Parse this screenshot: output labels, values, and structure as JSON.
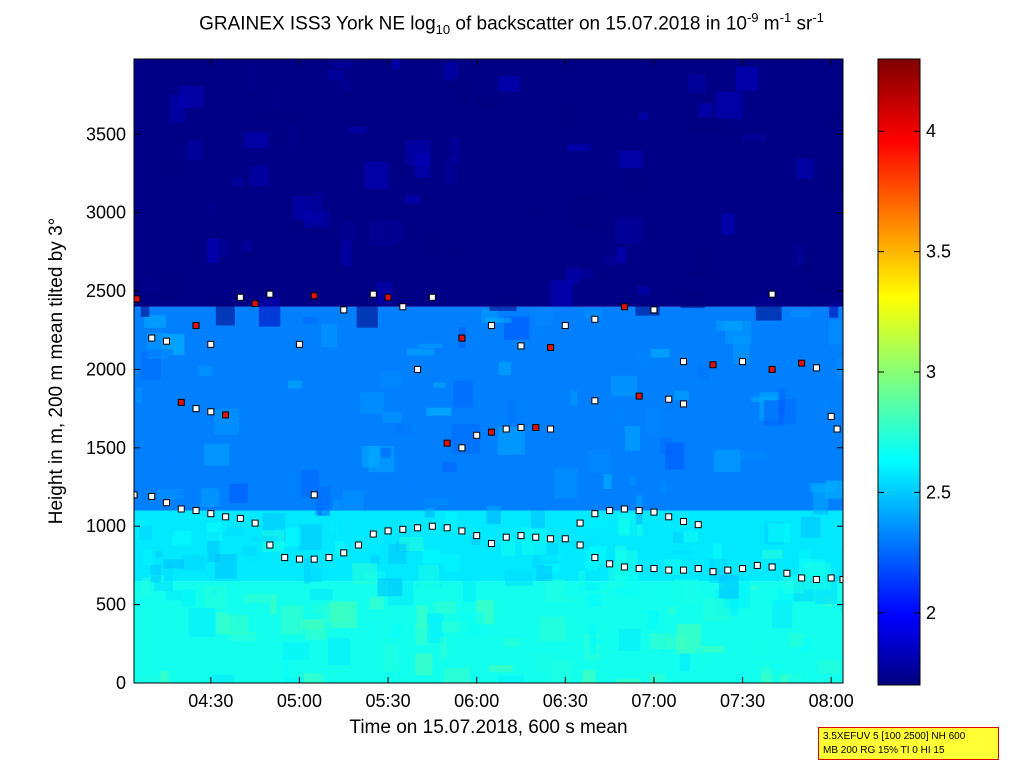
{
  "chart_data": {
    "type": "heatmap",
    "title_parts": {
      "pre": "GRAINEX ISS3 York NE log",
      "sub": "10",
      "mid": " of backscatter on 15.07.2018 in 10",
      "sup1": "-9",
      "mid2": " m",
      "sup2": "-1",
      "mid3": " sr",
      "sup3": "-1"
    },
    "xlabel": "Time on 15.07.2018, 600 s mean",
    "ylabel": "Height in m, 200 m mean tilted by 3°",
    "x_range": [
      "04:04",
      "08:04"
    ],
    "y_range": [
      0,
      3980
    ],
    "x_ticks": [
      "04:30",
      "05:00",
      "05:30",
      "06:00",
      "06:30",
      "07:00",
      "07:30",
      "08:00"
    ],
    "y_ticks": [
      0,
      500,
      1000,
      1500,
      2000,
      2500,
      3000,
      3500
    ],
    "colorbar": {
      "range": [
        1.7,
        4.3
      ],
      "ticks": [
        2,
        2.5,
        3,
        3.5,
        4
      ],
      "colormap": "jet"
    },
    "layers": [
      {
        "height_range": [
          0,
          650
        ],
        "value": 2.72
      },
      {
        "height_range": [
          650,
          1100
        ],
        "value": 2.62
      },
      {
        "height_range": [
          1100,
          2400
        ],
        "value": 2.35
      },
      {
        "height_range": [
          2400,
          3980
        ],
        "value": 1.72
      }
    ],
    "series": [
      {
        "marker": "square",
        "times": [
          "04:04",
          "04:10",
          "04:15",
          "04:20",
          "04:25",
          "04:30",
          "04:35",
          "04:40",
          "04:45",
          "04:50",
          "04:55",
          "05:00",
          "05:05",
          "05:10",
          "05:15",
          "05:20",
          "05:25",
          "05:30",
          "05:35",
          "05:40",
          "05:45",
          "05:50",
          "05:55",
          "06:00",
          "06:05",
          "06:10",
          "06:15",
          "06:20",
          "06:25",
          "06:30",
          "06:35",
          "06:40",
          "06:45",
          "06:50",
          "06:55",
          "07:00",
          "07:05",
          "07:10",
          "07:15",
          "07:20",
          "07:25",
          "07:30",
          "07:35",
          "07:40",
          "07:45",
          "07:50",
          "07:55",
          "08:00",
          "08:04"
        ],
        "heights": [
          1200,
          1190,
          1150,
          1110,
          1100,
          1080,
          1060,
          1050,
          1020,
          880,
          800,
          790,
          790,
          800,
          830,
          880,
          950,
          970,
          980,
          990,
          1000,
          990,
          970,
          940,
          890,
          930,
          940,
          930,
          920,
          920,
          880,
          800,
          760,
          740,
          730,
          730,
          720,
          720,
          730,
          710,
          720,
          730,
          750,
          740,
          700,
          670,
          660,
          670,
          660
        ]
      },
      {
        "marker": "square",
        "times": [
          "06:35",
          "06:40",
          "06:45",
          "06:50",
          "06:55",
          "07:00",
          "07:05",
          "07:10",
          "07:15"
        ],
        "heights": [
          1020,
          1080,
          1100,
          1110,
          1100,
          1090,
          1060,
          1030,
          1010
        ]
      },
      {
        "marker": "square",
        "times": [
          "04:05",
          "04:10",
          "04:15",
          "04:25",
          "04:30",
          "04:40",
          "04:45",
          "04:50",
          "05:00",
          "05:05",
          "05:15",
          "05:25",
          "05:30",
          "05:35",
          "05:45",
          "05:55",
          "06:05",
          "06:15",
          "06:25",
          "06:30",
          "06:40",
          "06:50",
          "07:00",
          "07:10",
          "07:20",
          "07:30",
          "07:40",
          "07:50",
          "08:00"
        ],
        "heights": [
          2450,
          2200,
          2180,
          2280,
          2160,
          2460,
          2420,
          2480,
          2160,
          2470,
          2380,
          2480,
          2460,
          2400,
          2460,
          2200,
          2280,
          2150,
          2140,
          2280,
          2320,
          2400,
          2380,
          2050,
          2030,
          2050,
          2480,
          2040,
          1700
        ]
      },
      {
        "marker": "square",
        "times": [
          "04:20",
          "04:25",
          "04:30",
          "04:35",
          "05:05",
          "05:40",
          "05:50",
          "05:55",
          "06:00",
          "06:05",
          "06:10",
          "06:15",
          "06:20",
          "06:25",
          "06:40",
          "06:55",
          "07:05",
          "07:10",
          "07:40",
          "07:55",
          "08:02"
        ],
        "heights": [
          1790,
          1750,
          1730,
          1710,
          1200,
          2000,
          1530,
          1500,
          1580,
          1600,
          1620,
          1630,
          1630,
          1620,
          1800,
          1830,
          1810,
          1780,
          2000,
          2010,
          1620
        ]
      }
    ]
  },
  "info_box": {
    "line1": "3.5XEFUV 5 [100 2500] NH 600",
    "line2": "MB 200 RG 15% TI 0 HI 15"
  }
}
